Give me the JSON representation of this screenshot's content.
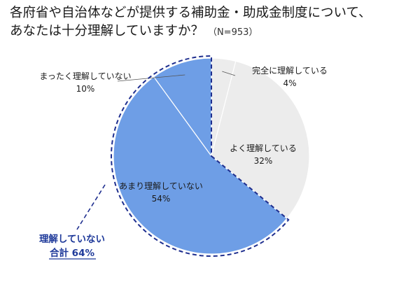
{
  "chart_data": {
    "type": "pie",
    "title_line1": "各府省や自治体などが提供する補助金・助成金制度について、",
    "title_line2": "あなたは十分理解していますか？",
    "sample": "（N=953）",
    "slices": [
      {
        "label": "完全に理解している",
        "value": 4,
        "value_label": "4%",
        "color": "#ececec"
      },
      {
        "label": "よく理解している",
        "value": 32,
        "value_label": "32%",
        "color": "#ececec"
      },
      {
        "label": "あまり理解していない",
        "value": 54,
        "value_label": "54%",
        "color": "#6e9ee6"
      },
      {
        "label": "まったく理解していない",
        "value": 10,
        "value_label": "10%",
        "color": "#6e9ee6"
      }
    ],
    "group_annotation": {
      "line1": "理解していない",
      "line2": "合計 64%",
      "members": [
        "あまり理解していない",
        "まったく理解していない"
      ],
      "outline_color": "#1f2f8f"
    },
    "start_angle_deg": 0,
    "direction": "clockwise"
  }
}
